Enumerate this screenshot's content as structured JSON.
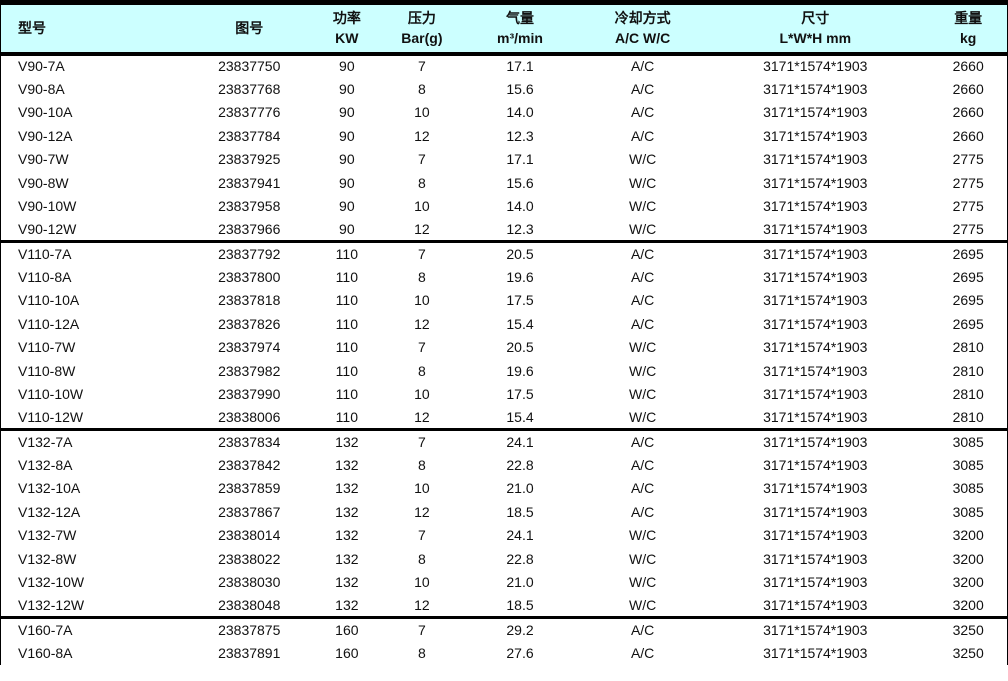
{
  "table": {
    "title": "compressor-specification-table",
    "columns": [
      {
        "line1": "型号",
        "line2": ""
      },
      {
        "line1": "图号",
        "line2": ""
      },
      {
        "line1": "功率",
        "line2": "KW"
      },
      {
        "line1": "压力",
        "line2": "Bar(g)"
      },
      {
        "line1": "气量",
        "line2": "m³/min"
      },
      {
        "line1": "冷却方式",
        "line2": "A/C W/C"
      },
      {
        "line1": "尺寸",
        "line2": "L*W*H mm"
      },
      {
        "line1": "重量",
        "line2": "kg"
      }
    ],
    "groups": [
      {
        "rows": [
          [
            "V90-7A",
            "23837750",
            "90",
            "7",
            "17.1",
            "A/C",
            "3171*1574*1903",
            "2660"
          ],
          [
            "V90-8A",
            "23837768",
            "90",
            "8",
            "15.6",
            "A/C",
            "3171*1574*1903",
            "2660"
          ],
          [
            "V90-10A",
            "23837776",
            "90",
            "10",
            "14.0",
            "A/C",
            "3171*1574*1903",
            "2660"
          ],
          [
            "V90-12A",
            "23837784",
            "90",
            "12",
            "12.3",
            "A/C",
            "3171*1574*1903",
            "2660"
          ],
          [
            "V90-7W",
            "23837925",
            "90",
            "7",
            "17.1",
            "W/C",
            "3171*1574*1903",
            "2775"
          ],
          [
            "V90-8W",
            "23837941",
            "90",
            "8",
            "15.6",
            "W/C",
            "3171*1574*1903",
            "2775"
          ],
          [
            "V90-10W",
            "23837958",
            "90",
            "10",
            "14.0",
            "W/C",
            "3171*1574*1903",
            "2775"
          ],
          [
            "V90-12W",
            "23837966",
            "90",
            "12",
            "12.3",
            "W/C",
            "3171*1574*1903",
            "2775"
          ]
        ]
      },
      {
        "rows": [
          [
            "V110-7A",
            "23837792",
            "110",
            "7",
            "20.5",
            "A/C",
            "3171*1574*1903",
            "2695"
          ],
          [
            "V110-8A",
            "23837800",
            "110",
            "8",
            "19.6",
            "A/C",
            "3171*1574*1903",
            "2695"
          ],
          [
            "V110-10A",
            "23837818",
            "110",
            "10",
            "17.5",
            "A/C",
            "3171*1574*1903",
            "2695"
          ],
          [
            "V110-12A",
            "23837826",
            "110",
            "12",
            "15.4",
            "A/C",
            "3171*1574*1903",
            "2695"
          ],
          [
            "V110-7W",
            "23837974",
            "110",
            "7",
            "20.5",
            "W/C",
            "3171*1574*1903",
            "2810"
          ],
          [
            "V110-8W",
            "23837982",
            "110",
            "8",
            "19.6",
            "W/C",
            "3171*1574*1903",
            "2810"
          ],
          [
            "V110-10W",
            "23837990",
            "110",
            "10",
            "17.5",
            "W/C",
            "3171*1574*1903",
            "2810"
          ],
          [
            "V110-12W",
            "23838006",
            "110",
            "12",
            "15.4",
            "W/C",
            "3171*1574*1903",
            "2810"
          ]
        ]
      },
      {
        "rows": [
          [
            "V132-7A",
            "23837834",
            "132",
            "7",
            "24.1",
            "A/C",
            "3171*1574*1903",
            "3085"
          ],
          [
            "V132-8A",
            "23837842",
            "132",
            "8",
            "22.8",
            "A/C",
            "3171*1574*1903",
            "3085"
          ],
          [
            "V132-10A",
            "23837859",
            "132",
            "10",
            "21.0",
            "A/C",
            "3171*1574*1903",
            "3085"
          ],
          [
            "V132-12A",
            "23837867",
            "132",
            "12",
            "18.5",
            "A/C",
            "3171*1574*1903",
            "3085"
          ],
          [
            "V132-7W",
            "23838014",
            "132",
            "7",
            "24.1",
            "W/C",
            "3171*1574*1903",
            "3200"
          ],
          [
            "V132-8W",
            "23838022",
            "132",
            "8",
            "22.8",
            "W/C",
            "3171*1574*1903",
            "3200"
          ],
          [
            "V132-10W",
            "23838030",
            "132",
            "10",
            "21.0",
            "W/C",
            "3171*1574*1903",
            "3200"
          ],
          [
            "V132-12W",
            "23838048",
            "132",
            "12",
            "18.5",
            "W/C",
            "3171*1574*1903",
            "3200"
          ]
        ]
      },
      {
        "rows": [
          [
            "V160-7A",
            "23837875",
            "160",
            "7",
            "29.2",
            "A/C",
            "3171*1574*1903",
            "3250"
          ],
          [
            "V160-8A",
            "23837891",
            "160",
            "8",
            "27.6",
            "A/C",
            "3171*1574*1903",
            "3250"
          ]
        ]
      }
    ]
  },
  "colors": {
    "header_bg": "#ccffff",
    "border": "#000000",
    "text": "#111111",
    "row_bg": "#ffffff"
  }
}
